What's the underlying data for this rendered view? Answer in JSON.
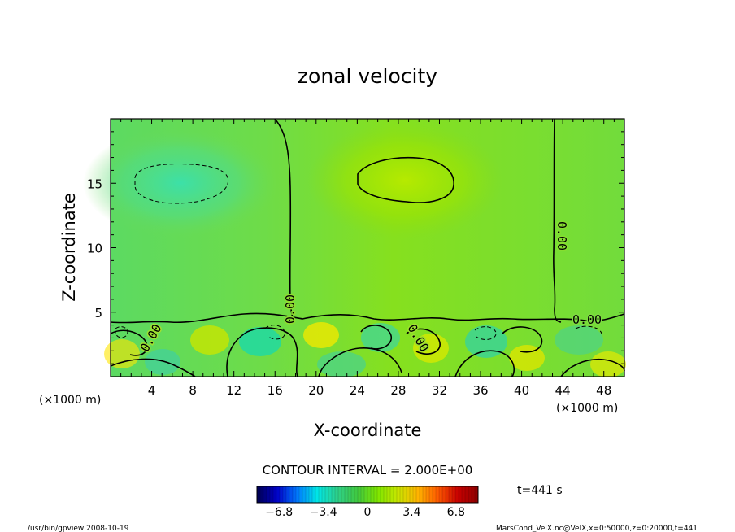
{
  "chart_data": {
    "type": "heatmap",
    "title": "zonal velocity",
    "xlabel": "X-coordinate",
    "ylabel": "Z-coordinate",
    "x_unit_left": "(×1000 m)",
    "x_unit_right": "(×1000 m)",
    "xlim": [
      0,
      50
    ],
    "ylim": [
      0,
      20
    ],
    "x_ticks": [
      "4",
      "8",
      "12",
      "16",
      "20",
      "24",
      "28",
      "32",
      "36",
      "40",
      "44",
      "48"
    ],
    "x_tick_values": [
      4,
      8,
      12,
      16,
      20,
      24,
      28,
      32,
      36,
      40,
      44,
      48
    ],
    "y_ticks": [
      "5",
      "10",
      "15"
    ],
    "y_tick_values": [
      5,
      10,
      15
    ],
    "contour_label": "0.00",
    "contour_interval_text": "CONTOUR INTERVAL = 2.000E+00",
    "colorbar": {
      "min": -8.5,
      "max": 8.5,
      "tick_labels": [
        "−6.8",
        "−3.4",
        "0",
        "3.4",
        "6.8"
      ],
      "tick_values": [
        -6.8,
        -3.4,
        0,
        3.4,
        6.8
      ],
      "colors": [
        "#000050",
        "#0000c8",
        "#0078ff",
        "#00e6e6",
        "#2ed08a",
        "#40c840",
        "#7ee600",
        "#c8e600",
        "#ffb400",
        "#ff5a00",
        "#c80000",
        "#8c0000"
      ]
    },
    "features": [
      {
        "kind": "max",
        "x": 29,
        "z": 15.5,
        "value": 2.2
      },
      {
        "kind": "min",
        "x": 6,
        "z": 15,
        "value": -1.3
      },
      {
        "kind": "zero_line",
        "x": 18
      },
      {
        "kind": "zero_line",
        "x": 43
      }
    ]
  },
  "time_label": "t=441 s",
  "footer_left": "/usr/bin/gpview   2008-10-19",
  "footer_right": "MarsCond_VelX.nc@VelX,x=0:50000,z=0:20000,t=441"
}
